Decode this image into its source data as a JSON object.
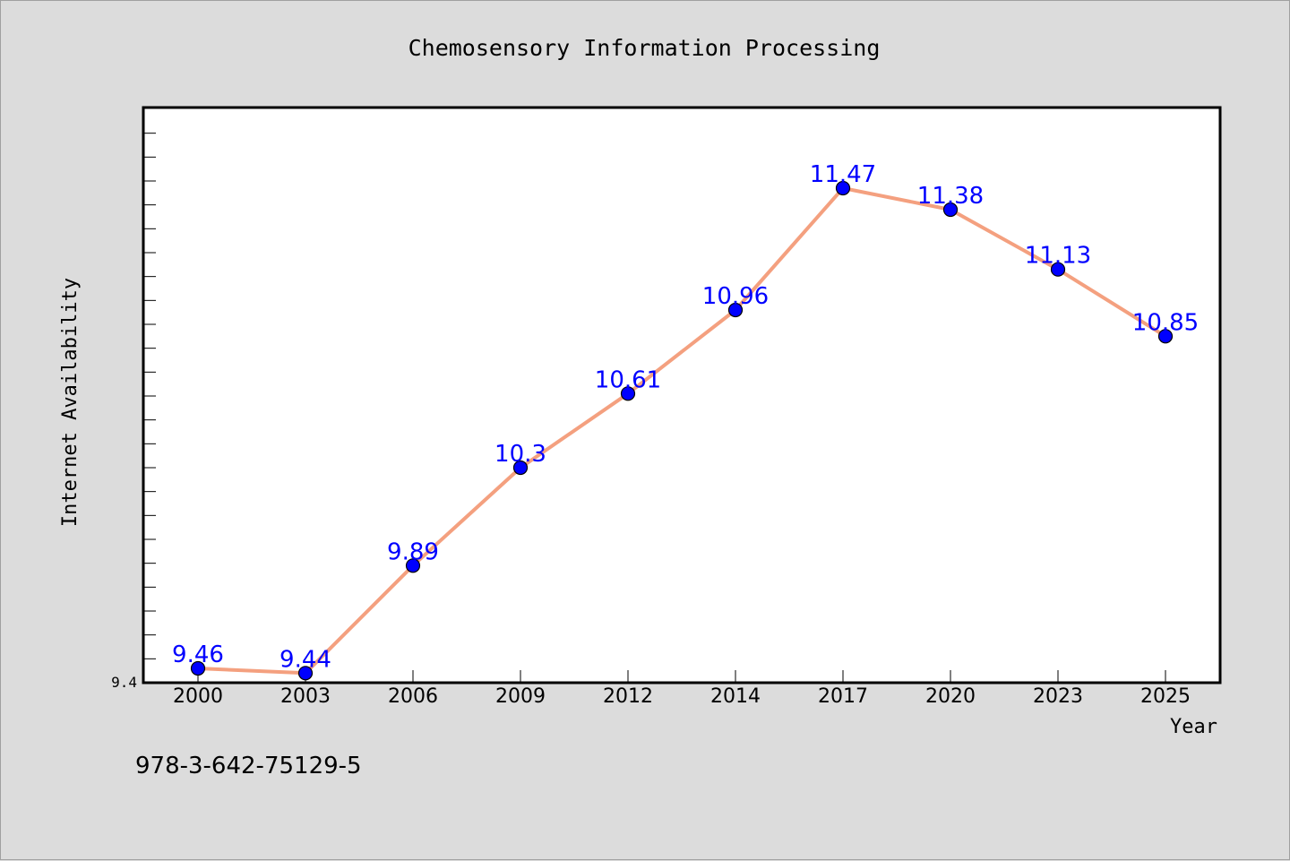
{
  "footer_text": "978-3-642-75129-5",
  "colors": {
    "line": "#f4a07f",
    "marker": "#0000ff",
    "label": "#0000ff",
    "background": "#dcdcdc",
    "plot": "#ffffff"
  },
  "chart_data": {
    "type": "line",
    "title": "Chemosensory Information Processing",
    "xlabel": "Year",
    "ylabel": "Internet Availability",
    "categories": [
      "2000",
      "2003",
      "2006",
      "2009",
      "2012",
      "2014",
      "2017",
      "2020",
      "2023",
      "2025"
    ],
    "series": [
      {
        "values": [
          9.46,
          9.44,
          9.89,
          10.3,
          10.61,
          10.96,
          11.47,
          11.38,
          11.13,
          10.85
        ]
      }
    ],
    "data_labels": [
      "9.46",
      "9.44",
      "9.89",
      "10.3",
      "10.61",
      "10.96",
      "11.47",
      "11.38",
      "11.13",
      "10.85"
    ],
    "ylim": [
      9.4,
      11.8
    ],
    "y_tick_label": "9.4",
    "grid": false,
    "legend": "none"
  }
}
